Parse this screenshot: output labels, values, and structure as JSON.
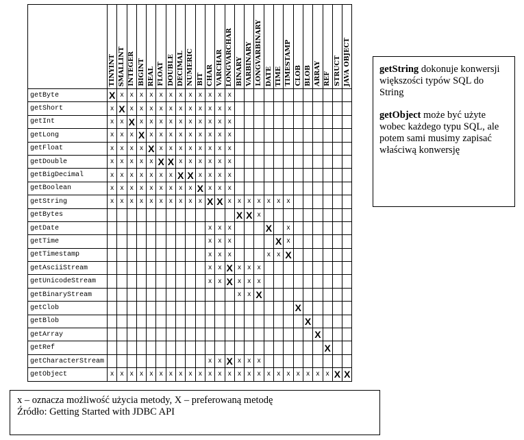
{
  "sql_types": [
    "TINYINT",
    "SMALLINT",
    "INTEGER",
    "BIGINT",
    "REAL",
    "FLOAT",
    "DOUBLE",
    "DECIMAL",
    "NUMERIC",
    "BIT",
    "CHAR",
    "VARCHAR",
    "LONGVARCHAR",
    "BINARY",
    "VARBINARY",
    "LONGVARBINARY",
    "DATE",
    "TIME",
    "TIMESTAMP",
    "CLOB",
    "BLOB",
    "ARRAY",
    "REF",
    "STRUCT",
    "JAVA OBJECT"
  ],
  "rows": [
    {
      "method": "getByte",
      "cells": "Xxxxxxxxxxxxx            "
    },
    {
      "method": "getShort",
      "cells": "xXxxxxxxxxxxx            "
    },
    {
      "method": "getInt",
      "cells": "xxXxxxxxxxxxx            "
    },
    {
      "method": "getLong",
      "cells": "xxxXxxxxxxxxx            "
    },
    {
      "method": "getFloat",
      "cells": "xxxxXxxxxxxxx            "
    },
    {
      "method": "getDouble",
      "cells": "xxxxxXXxxxxxx            "
    },
    {
      "method": "getBigDecimal",
      "cells": "xxxxxxxXXxxxx            "
    },
    {
      "method": "getBoolean",
      "cells": "xxxxxxxxxXxxx            "
    },
    {
      "method": "getString",
      "cells": "xxxxxxxxxxXXxxxxxxx      "
    },
    {
      "method": "getBytes",
      "cells": "             XXx         "
    },
    {
      "method": "getDate",
      "cells": "          xxx   X x      "
    },
    {
      "method": "getTime",
      "cells": "          xxx    Xx      "
    },
    {
      "method": "getTimestamp",
      "cells": "          xxx   xxX      "
    },
    {
      "method": "getAsciiStream",
      "cells": "          xxXxxx         "
    },
    {
      "method": "getUnicodeStream",
      "cells": "          xxXxxx         "
    },
    {
      "method": "getBinaryStream",
      "cells": "             xxX         "
    },
    {
      "method": "getClob",
      "cells": "                   X     "
    },
    {
      "method": "getBlob",
      "cells": "                    X    "
    },
    {
      "method": "getArray",
      "cells": "                     X   "
    },
    {
      "method": "getRef",
      "cells": "                      X  "
    },
    {
      "method": "getCharacterStream",
      "cells": "          xxXxxx         "
    },
    {
      "method": "getObject",
      "cells": "xxxxxxxxxxxxxxxxxxxxxxxXX"
    }
  ],
  "info": {
    "p1_bold": "getString",
    "p1_text": " dokonuje konwersji większości typów SQL do String",
    "p2_bold": "getObject",
    "p2_text": " może być użyte wobec każdego typu SQL, ale potem sami musimy zapisać właściwą konwersję"
  },
  "legend": {
    "line1": "x – oznacza możliwość użycia metody, X – preferowaną metodę",
    "line2": "Źródło: Getting Started with JDBC API"
  }
}
